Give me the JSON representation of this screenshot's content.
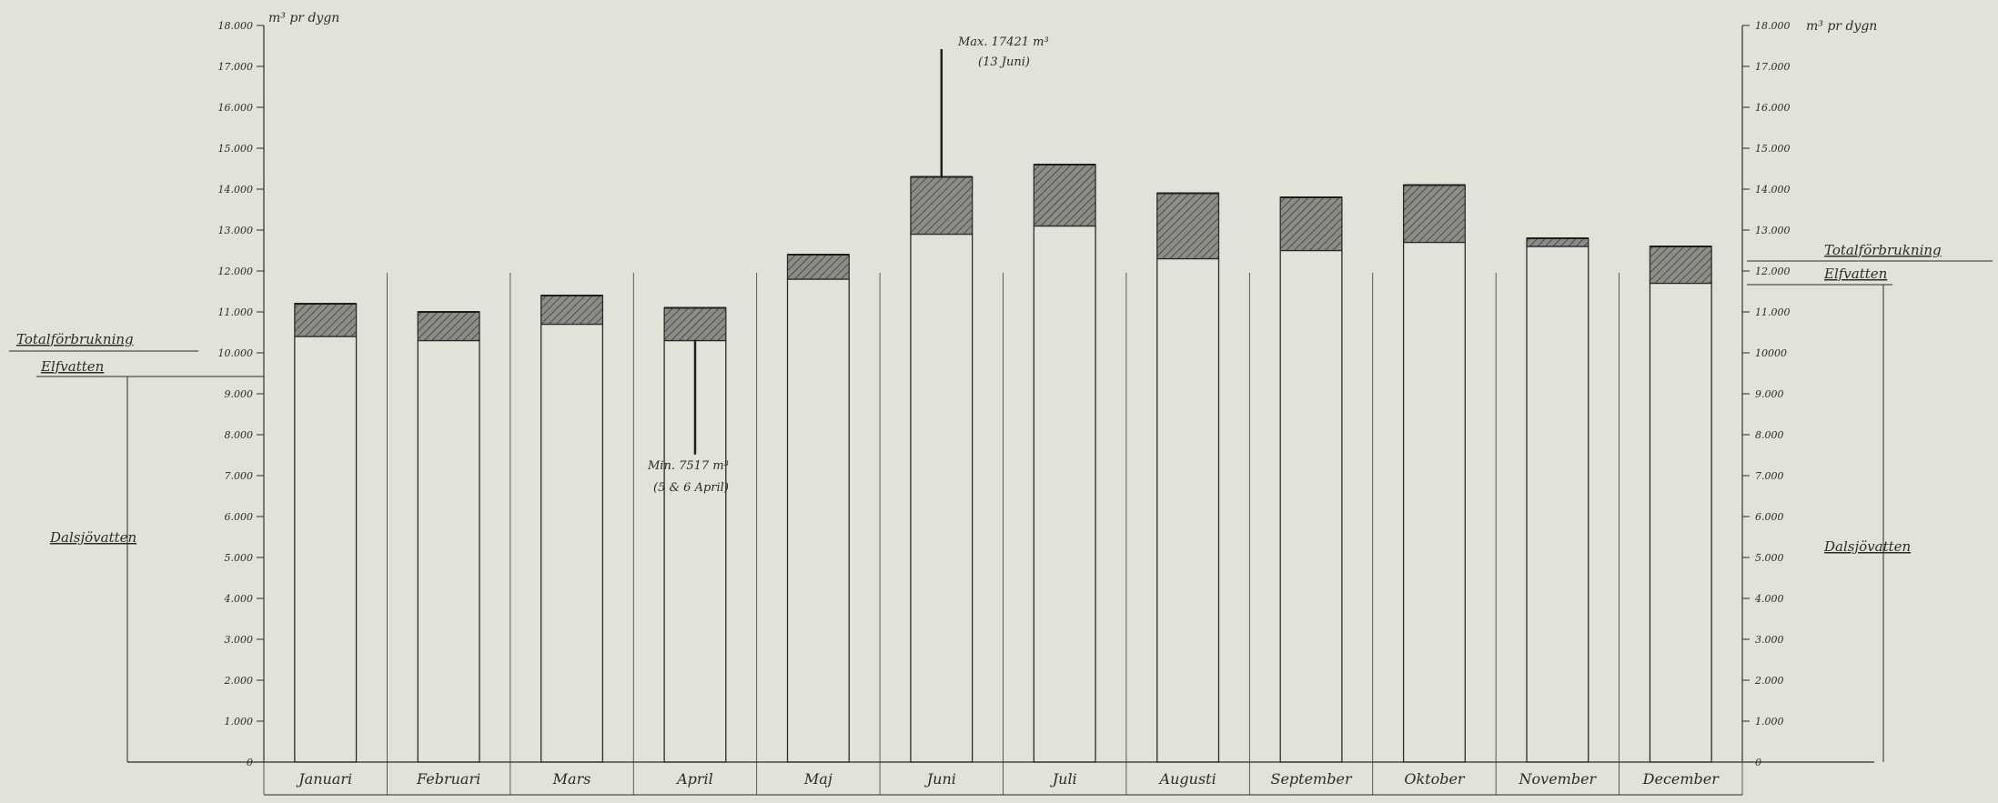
{
  "chart_data": {
    "type": "bar",
    "unit_label": "m³ pr dygn",
    "y_axis": {
      "ylim": [
        0,
        18000
      ],
      "ticks": [
        0,
        1000,
        2000,
        3000,
        4000,
        5000,
        6000,
        7000,
        8000,
        9000,
        10000,
        11000,
        12000,
        13000,
        14000,
        15000,
        16000,
        17000,
        18000
      ],
      "left_tick_labels": [
        "0",
        "1.000",
        "2.000",
        "3.000",
        "4.000",
        "5.000",
        "6.000",
        "7.000",
        "8.000",
        "9.000",
        "10.000",
        "11.000",
        "12.000",
        "13.000",
        "14.000",
        "15.000",
        "16.000",
        "17.000",
        "18.000"
      ],
      "right_tick_labels": [
        "0",
        "1.000",
        "2.000",
        "3.000",
        "4.000",
        "5.000",
        "6.000",
        "7.000",
        "8.000",
        "9.000",
        "10000",
        "11.000",
        "12.000",
        "13.000",
        "14.000",
        "15.000",
        "16.000",
        "17.000",
        "18.000"
      ]
    },
    "categories": [
      "Januari",
      "Februari",
      "Mars",
      "April",
      "Maj",
      "Juni",
      "Juli",
      "Augusti",
      "September",
      "Oktober",
      "November",
      "December"
    ],
    "series": [
      {
        "name": "Totalförbrukning",
        "values": [
          11200,
          11000,
          11400,
          11100,
          12400,
          14300,
          14600,
          13900,
          13800,
          14100,
          12800,
          12600
        ]
      },
      {
        "name": "Elfvatten",
        "values": [
          10400,
          10300,
          10700,
          10300,
          11800,
          12900,
          13100,
          12300,
          12500,
          12700,
          12600,
          11700
        ]
      },
      {
        "name": "Dalsjövatten",
        "values": [
          800,
          700,
          700,
          800,
          600,
          1400,
          1500,
          1600,
          1300,
          1400,
          200,
          900
        ]
      }
    ],
    "left_side_labels": {
      "total": "Totalförbrukning",
      "elf": "Elfvatten",
      "dalsjo": "Dalsjövatten"
    },
    "right_side_labels": {
      "total": "Totalförbrukning",
      "elf": "Elfvatten",
      "dalsjo": "Dalsjövatten"
    },
    "annotations": {
      "max": {
        "line1": "Max. 17421 m³",
        "line2": "(13 Juni)",
        "value": 17421,
        "month": "Juni"
      },
      "min": {
        "line1": "Min. 7517 m³",
        "line2": "(5 & 6 April)",
        "value": 7517,
        "month": "April"
      }
    },
    "colors": {
      "paper": "#e3e2d9",
      "ink": "#2b2b2b",
      "hatch": "#6e6e6a"
    }
  }
}
